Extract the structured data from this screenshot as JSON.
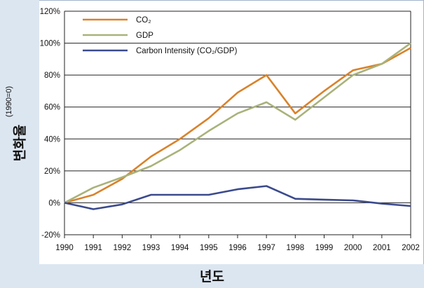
{
  "chart_data": {
    "type": "line",
    "title": "",
    "xlabel": "년도",
    "ylabel": "변화율",
    "ylabel_sub": "(1990=0)",
    "x": [
      1990,
      1991,
      1992,
      1993,
      1994,
      1995,
      1996,
      1997,
      1998,
      1999,
      2000,
      2001,
      2002
    ],
    "x_tick_labels": [
      "1990",
      "1991",
      "1992",
      "1993",
      "1994",
      "1995",
      "1996",
      "1997",
      "1998",
      "1999",
      "2000",
      "2001",
      "2002"
    ],
    "ylim": [
      -20,
      120
    ],
    "y_ticks": [
      -20,
      0,
      20,
      40,
      60,
      80,
      100,
      120
    ],
    "y_tick_labels": [
      "-20%",
      "0%",
      "20%",
      "40%",
      "60%",
      "80%",
      "100%",
      "120%"
    ],
    "grid": true,
    "legend_position": "top-left",
    "series": [
      {
        "name": "CO₂",
        "color": "#d9822b",
        "values": [
          0,
          5,
          15,
          29,
          40,
          53,
          69,
          80,
          56,
          70,
          83,
          87,
          97
        ]
      },
      {
        "name": "GDP",
        "color": "#a9b27a",
        "values": [
          0,
          9.5,
          16,
          23,
          33,
          45,
          56,
          63,
          52,
          66,
          80,
          87,
          100
        ]
      },
      {
        "name": "Carbon Intensity (CO₂/GDP)",
        "color": "#3b4a8c",
        "values": [
          0,
          -4,
          -1,
          5,
          5,
          5,
          8.5,
          10.5,
          2.5,
          2,
          1.5,
          -0.5,
          -2
        ]
      }
    ]
  }
}
